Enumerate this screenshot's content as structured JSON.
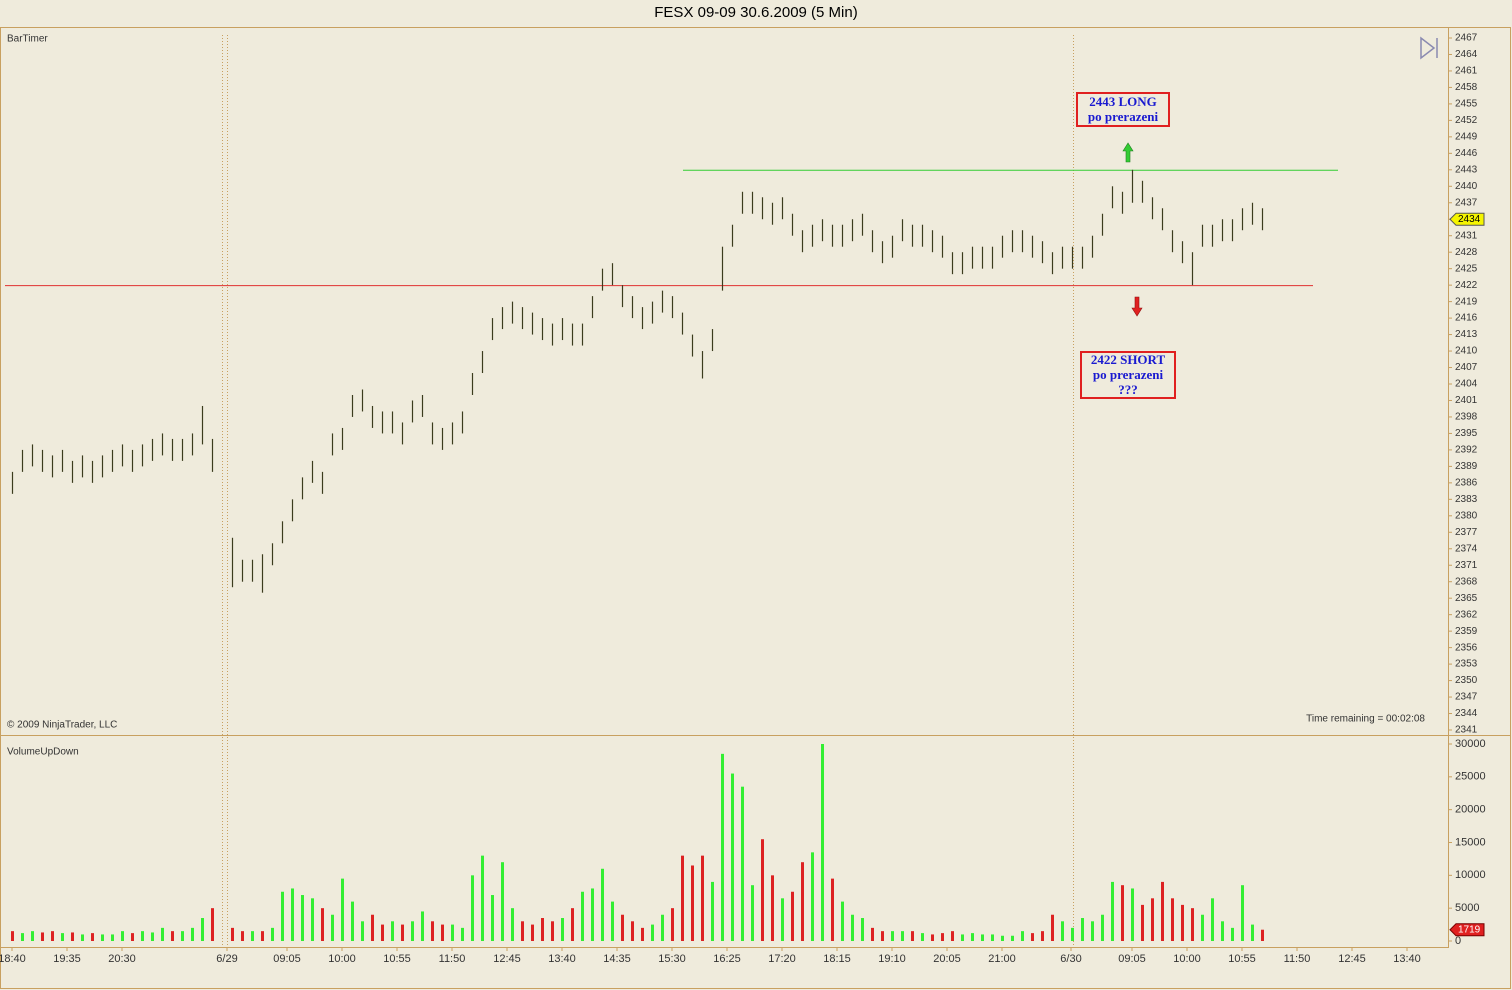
{
  "chart_data": {
    "type": "ohlc",
    "title": "FESX 09-09  30.6.2009 (5 Min)",
    "indicator_label": "BarTimer",
    "copyright": "© 2009 NinjaTrader, LLC",
    "time_remaining": "Time remaining = 00:02:08",
    "bar_color": "#3c3c1e",
    "high": [
      2388,
      2392,
      2393,
      2392,
      2391,
      2392,
      2390,
      2391,
      2390,
      2391,
      2392,
      2393,
      2392,
      2393,
      2394,
      2395,
      2394,
      2394,
      2395,
      2400,
      2394,
      null,
      2376,
      2372,
      2372,
      2373,
      2375,
      2379,
      2383,
      2387,
      2390,
      2388,
      2395,
      2396,
      2402,
      2403,
      2400,
      2399,
      2399,
      2397,
      2401,
      2402,
      2397,
      2396,
      2397,
      2399,
      2406,
      2410,
      2416,
      2418,
      2419,
      2418,
      2417,
      2416,
      2415,
      2416,
      2415,
      2415,
      2420,
      2425,
      2426,
      2422,
      2420,
      2418,
      2419,
      2421,
      2420,
      2417,
      2413,
      2410,
      2414,
      2429,
      2433,
      2439,
      2439,
      2438,
      2437,
      2438,
      2435,
      2432,
      2433,
      2434,
      2433,
      2433,
      2434,
      2435,
      2432,
      2430,
      2431,
      2434,
      2433,
      2433,
      2432,
      2431,
      2428,
      2428,
      2429,
      2429,
      2429,
      2431,
      2432,
      2432,
      2431,
      2430,
      2428,
      2429,
      2429,
      2429,
      2431,
      2435,
      2440,
      2439,
      2443,
      2441,
      2438,
      2436,
      2432,
      2430,
      2428,
      2433,
      2433,
      2434,
      2434,
      2436,
      2437,
      2436
    ],
    "low": [
      2384,
      2388,
      2389,
      2388,
      2387,
      2388,
      2386,
      2387,
      2386,
      2387,
      2388,
      2389,
      2388,
      2389,
      2390,
      2391,
      2390,
      2390,
      2391,
      2393,
      2388,
      null,
      2367,
      2368,
      2368,
      2366,
      2371,
      2375,
      2379,
      2383,
      2386,
      2384,
      2391,
      2392,
      2398,
      2399,
      2396,
      2395,
      2395,
      2393,
      2397,
      2398,
      2393,
      2392,
      2393,
      2395,
      2402,
      2406,
      2412,
      2414,
      2415,
      2414,
      2413,
      2412,
      2411,
      2412,
      2411,
      2411,
      2416,
      2421,
      2422,
      2418,
      2416,
      2414,
      2415,
      2417,
      2416,
      2413,
      2409,
      2405,
      2410,
      2421,
      2429,
      2435,
      2435,
      2434,
      2433,
      2434,
      2431,
      2428,
      2429,
      2430,
      2429,
      2429,
      2430,
      2431,
      2428,
      2426,
      2427,
      2430,
      2429,
      2429,
      2428,
      2427,
      2424,
      2424,
      2425,
      2425,
      2425,
      2427,
      2428,
      2428,
      2427,
      2426,
      2424,
      2425,
      2425,
      2425,
      2427,
      2431,
      2436,
      2435,
      2437,
      2437,
      2434,
      2432,
      2428,
      2426,
      2422,
      2429,
      2429,
      2430,
      2430,
      2432,
      2433,
      2432
    ],
    "ylim": [
      2341,
      2467
    ],
    "yticks": [
      2341,
      2344,
      2347,
      2350,
      2353,
      2356,
      2359,
      2362,
      2365,
      2368,
      2371,
      2374,
      2377,
      2380,
      2383,
      2386,
      2389,
      2392,
      2395,
      2398,
      2401,
      2404,
      2407,
      2410,
      2413,
      2416,
      2419,
      2422,
      2425,
      2428,
      2431,
      2434,
      2437,
      2440,
      2443,
      2446,
      2449,
      2452,
      2455,
      2458,
      2461,
      2464,
      2467
    ],
    "last_price": 2434,
    "xticks": [
      "18:40",
      "19:35",
      "20:30",
      "6/29",
      "09:05",
      "10:00",
      "10:55",
      "11:50",
      "12:45",
      "13:40",
      "14:35",
      "15:30",
      "16:25",
      "17:20",
      "18:15",
      "19:10",
      "20:05",
      "21:00",
      "6/30",
      "09:05",
      "10:00",
      "10:55",
      "11:50",
      "12:45",
      "13:40"
    ],
    "levels": [
      {
        "value": 2443,
        "color": "#33cc33"
      },
      {
        "value": 2422,
        "color": "#e03030"
      }
    ],
    "annotations": [
      {
        "lines": [
          "2443 LONG",
          "po prerazeni"
        ]
      },
      {
        "lines": [
          "2422 SHORT",
          "po prerazeni",
          "???"
        ]
      }
    ],
    "volume": {
      "title": "VolumeUpDown",
      "up_color": "#33ee33",
      "down_color": "#dd2222",
      "values": [
        1500,
        1200,
        1500,
        1300,
        1500,
        1200,
        1300,
        1000,
        1200,
        1000,
        1000,
        1500,
        1200,
        1500,
        1300,
        2000,
        1500,
        1500,
        2000,
        3500,
        5000,
        null,
        2000,
        1500,
        1500,
        1500,
        2000,
        7500,
        8000,
        7000,
        6500,
        5000,
        4000,
        9500,
        6000,
        3000,
        4000,
        2500,
        3000,
        2500,
        3000,
        4500,
        3000,
        2500,
        2500,
        2000,
        10000,
        13000,
        7000,
        12000,
        5000,
        3000,
        2500,
        3500,
        3000,
        3500,
        5000,
        7500,
        8000,
        11000,
        6000,
        4000,
        3000,
        2000,
        2500,
        4000,
        5000,
        13000,
        11500,
        13000,
        9000,
        28500,
        25500,
        23500,
        8500,
        15500,
        10000,
        6500,
        7500,
        12000,
        13500,
        30000,
        9500,
        6000,
        4000,
        3500,
        2000,
        1500,
        1500,
        1500,
        1500,
        1200,
        1000,
        1200,
        1500,
        1000,
        1200,
        1000,
        1000,
        800,
        800,
        1500,
        1200,
        1500,
        4000,
        3000,
        2000,
        3500,
        3000,
        4000,
        9000,
        8500,
        8000,
        5500,
        6500,
        9000,
        6500,
        5500,
        5000,
        4000,
        6500,
        3000,
        2000,
        8500,
        2500,
        1719
      ],
      "ylim": [
        0,
        30000
      ],
      "yticks": [
        0,
        5000,
        10000,
        15000,
        20000,
        25000,
        30000
      ]
    }
  }
}
